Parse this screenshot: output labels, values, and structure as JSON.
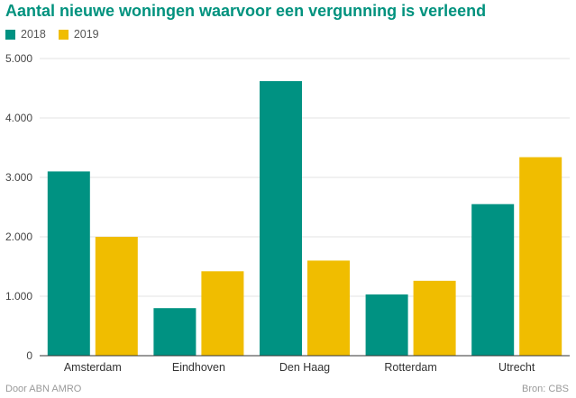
{
  "title": "Aantal nieuwe woningen waarvoor een vergunning is verleend",
  "footer": {
    "left": "Door ABN AMRO",
    "right": "Bron: CBS"
  },
  "colors": {
    "s2018": "#009282",
    "s2019": "#f0bd00",
    "title": "#00927e"
  },
  "chart_data": {
    "type": "bar",
    "title": "Aantal nieuwe woningen waarvoor een vergunning is verleend",
    "categories": [
      "Amsterdam",
      "Eindhoven",
      "Den Haag",
      "Rotterdam",
      "Utrecht"
    ],
    "series": [
      {
        "name": "2018",
        "values": [
          3100,
          800,
          4620,
          1030,
          2550
        ]
      },
      {
        "name": "2019",
        "values": [
          2000,
          1420,
          1600,
          1260,
          3340
        ]
      }
    ],
    "ylim": [
      0,
      5000
    ],
    "yticks": [
      "0",
      "1.000",
      "2.000",
      "3.000",
      "4.000",
      "5.000"
    ],
    "ytick_values": [
      0,
      1000,
      2000,
      3000,
      4000,
      5000
    ],
    "grid": true,
    "legend": "top-left",
    "xlabel": "",
    "ylabel": ""
  }
}
